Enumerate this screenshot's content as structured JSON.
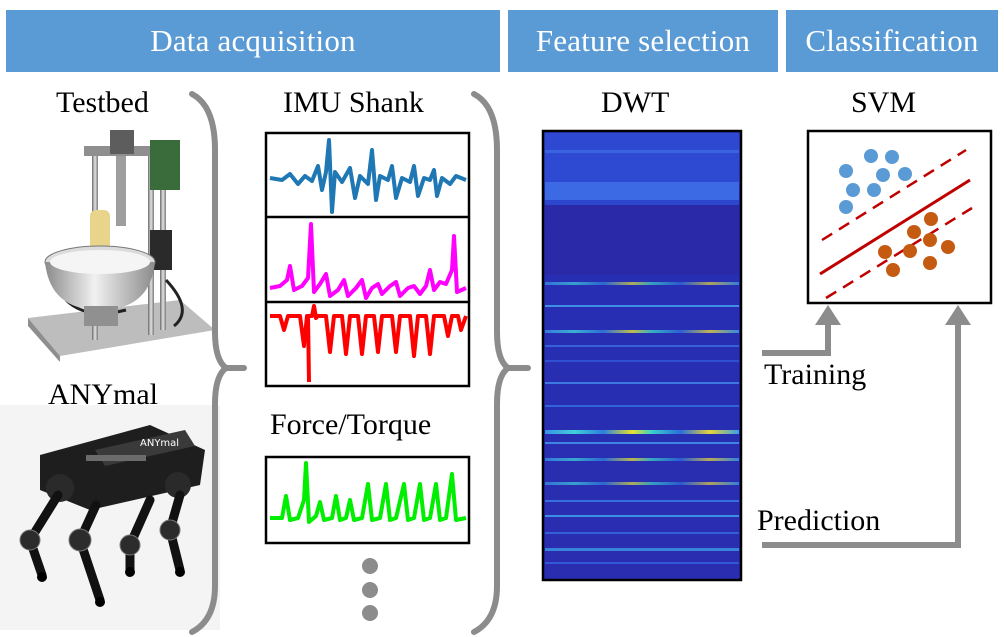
{
  "headers": {
    "data_acquisition": "Data acquisition",
    "feature_selection": "Feature selection",
    "classification": "Classification"
  },
  "labels": {
    "testbed": "Testbed",
    "anymal": "ANYmal",
    "imu_shank": "IMU Shank",
    "force_torque": "Force/Torque",
    "dwt": "DWT",
    "svm": "SVM",
    "training": "Training",
    "prediction": "Prediction"
  },
  "colors": {
    "header_bg": "#5b9bd5",
    "signal_imu_1": "#1f77b4",
    "signal_imu_2": "#ff00ff",
    "signal_imu_3": "#ff0000",
    "signal_force": "#00ee00",
    "svm_class_a": "#5b9bd5",
    "svm_class_b": "#c55a11",
    "svm_boundary": "#c00000",
    "arrow": "#8c8c8c"
  }
}
